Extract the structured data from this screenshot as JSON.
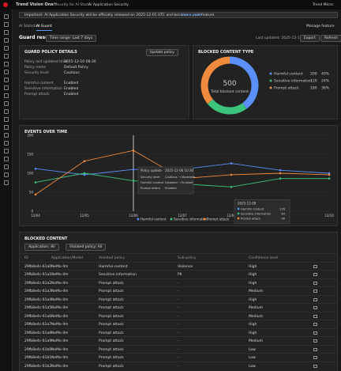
{
  "header": {
    "product": "Trend Vision One™",
    "breadcrumb": [
      "Security for AI Stack",
      "AI Application Security"
    ],
    "user": "Trend Micro"
  },
  "banner": {
    "text": "Important: AI Application Security will be officially released on 2025-12-01 UTC and become a paid feature.",
    "link": "Learn more"
  },
  "tabs": [
    "AI Statistics",
    "AI Guard"
  ],
  "manage": "Manage feature",
  "toolbar": {
    "title": "Guard results",
    "time_range": "Time range: Last 7 days",
    "last_updated": "Last updated: 2025-12-10 09:45",
    "export": "Export",
    "refresh": "Refresh"
  },
  "policy": {
    "title": "GUARD POLICY DETAILS",
    "button": "Update policy",
    "rows": [
      [
        "Policy last updated time",
        "2025-12-10 08:30"
      ],
      [
        "Policy name",
        "Default Policy"
      ],
      [
        "Security level",
        "Cautious"
      ],
      [
        "Harmful content",
        "Enabled"
      ],
      [
        "Sensitive information",
        "Enabled"
      ],
      [
        "Prompt attack",
        "Enabled"
      ]
    ]
  },
  "chart_data": [
    {
      "type": "pie",
      "title": "BLOCKED CONTENT TYPE",
      "total": 500,
      "total_label": "Total blocked content",
      "categories": [
        "Harmful content",
        "Sensitive information",
        "Prompt attack"
      ],
      "values": [
        200,
        120,
        180
      ],
      "percent_labels": [
        "40%",
        "24%",
        "36%"
      ],
      "colors": [
        "#5b8ff9",
        "#3cc47c",
        "#f08a3c"
      ]
    },
    {
      "type": "line",
      "title": "EVENTS OVER TIME",
      "x": [
        "12/04",
        "12/05",
        "12/06",
        "12/07",
        "12/08",
        "12/09",
        "12/10"
      ],
      "ylim": [
        0,
        200
      ],
      "yticks": [
        0,
        50,
        100,
        150,
        200
      ],
      "grid": true,
      "series": [
        {
          "name": "Harmful content",
          "color": "#5b8ff9",
          "values": [
            112,
            96,
            110,
            110,
            126,
            108,
            100
          ]
        },
        {
          "name": "Sensitive information",
          "color": "#3cc47c",
          "values": [
            76,
            100,
            80,
            72,
            64,
            86,
            86
          ]
        },
        {
          "name": "Prompt attack",
          "color": "#f08a3c",
          "values": [
            44,
            132,
            160,
            86,
            96,
            100,
            96
          ]
        }
      ],
      "policy_update": {
        "at": "12/06",
        "title": "Policy update",
        "date": "2025-12-06 10:30",
        "rows": [
          [
            "Security level",
            "Cautious → Moderate"
          ],
          [
            "Harmful content",
            "Disabled → Enabled"
          ],
          [
            "Prompt attack",
            "Enabled"
          ]
        ]
      },
      "hover": {
        "at": "12/08",
        "title": "2025-12-08"
      }
    }
  ],
  "table": {
    "title": "BLOCKED CONTENT",
    "filters": [
      "Application: All",
      "Violated policy: All"
    ],
    "columns": [
      "ID",
      "Application/Model",
      "Violated policy",
      "Sub-policy",
      "Confidence level"
    ],
    "rows": [
      [
        "29fb8e4c-61a0",
        "NeMo-llm",
        "Harmful content",
        "Violence",
        "High"
      ],
      [
        "29fb8e4c-61a1",
        "NeMo-llm",
        "Sensitive information",
        "PII",
        "High"
      ],
      [
        "29fb8e4c-61a2",
        "NeMo-llm",
        "Prompt attack",
        "-",
        "High"
      ],
      [
        "29fb8e4c-61a3",
        "NeMo-llm",
        "Prompt attack",
        "-",
        "Medium"
      ],
      [
        "29fb8e4c-61a4",
        "NeMo-llm",
        "Prompt attack",
        "-",
        "High"
      ],
      [
        "29fb8e4c-61a5",
        "NeMo-llm",
        "Prompt attack",
        "-",
        "Medium"
      ],
      [
        "29fb8e4c-61a6",
        "NeMo-llm",
        "Prompt attack",
        "-",
        "Medium"
      ],
      [
        "29fb8e4c-61a7",
        "NeMo-llm",
        "Prompt attack",
        "-",
        "High"
      ],
      [
        "29fb8e4c-61a8",
        "NeMo-llm",
        "Prompt attack",
        "-",
        "High"
      ],
      [
        "29fb8e4c-61a9",
        "NeMo-llm",
        "Prompt attack",
        "-",
        "Medium"
      ],
      [
        "29fb8e4c-61b0",
        "NeMo-llm",
        "Prompt attack",
        "-",
        "Low"
      ],
      [
        "29fb8e4c-61b1",
        "NeMo-llm",
        "Prompt attack",
        "-",
        "Low"
      ],
      [
        "29fb8e4c-61b2",
        "NeMo-llm",
        "Prompt attack",
        "-",
        "Low"
      ]
    ]
  }
}
